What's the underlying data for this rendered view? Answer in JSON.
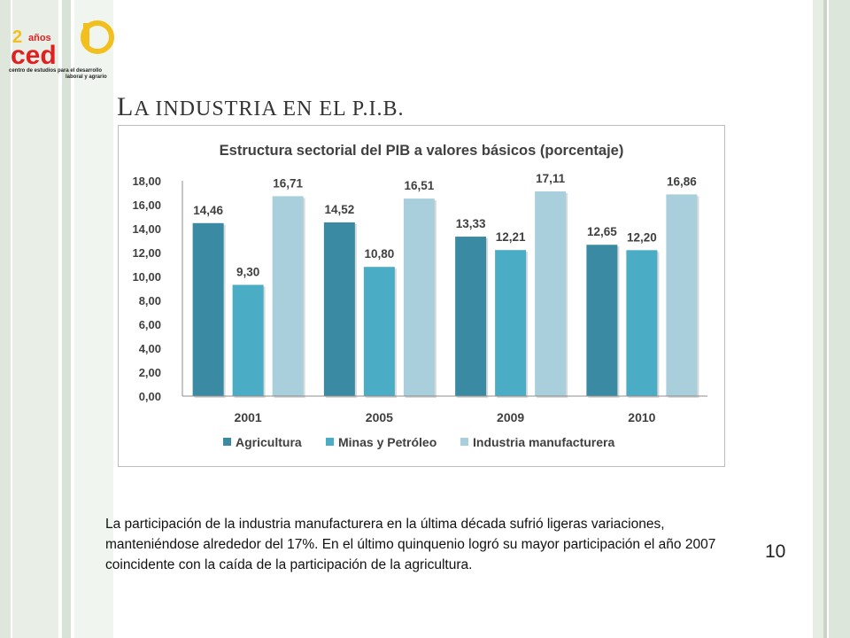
{
  "slide": {
    "title_cap": "L",
    "title_rest": "a industria en el p.i.b.",
    "caption": "La participación de la industria manufacturera en la última década sufrió ligeras variaciones, manteniéndose alrededor del 17%. En el último quinquenio logró su mayor participación el año 2007 coincidente con la caída de la participación de la agricultura.",
    "page_number": "10"
  },
  "logo": {
    "years_text": "años",
    "brand_text": "ced",
    "tagline_line1": "centro de estudios para el desarrollo",
    "tagline_line2": "laboral y agrario",
    "colors": {
      "red": "#e02020",
      "yellow": "#f2c01e"
    }
  },
  "chart_data": {
    "type": "bar",
    "title": "Estructura sectorial del PIB a valores básicos (porcentaje)",
    "categories": [
      "2001",
      "2005",
      "2009",
      "2010"
    ],
    "series": [
      {
        "name": "Agricultura",
        "color": "#3a8aa3",
        "values": [
          14.46,
          14.52,
          13.33,
          12.65
        ],
        "labels": [
          "14,46",
          "14,52",
          "13,33",
          "12,65"
        ]
      },
      {
        "name": "Minas y Petróleo",
        "color": "#4bacc6",
        "values": [
          9.3,
          10.8,
          12.21,
          12.2
        ],
        "labels": [
          "9,30",
          "10,80",
          "12,21",
          "12,20"
        ]
      },
      {
        "name": "Industria manufacturera",
        "color": "#a9cfdd",
        "values": [
          16.71,
          16.51,
          17.11,
          16.86
        ],
        "labels": [
          "16,71",
          "16,51",
          "17,11",
          "16,86"
        ]
      }
    ],
    "y_ticks": [
      "0,00",
      "2,00",
      "4,00",
      "6,00",
      "8,00",
      "10,00",
      "12,00",
      "14,00",
      "16,00",
      "18,00"
    ],
    "ylim": [
      0,
      18
    ],
    "grid": false,
    "legend_position": "bottom"
  },
  "colors": {
    "stripe_light": "#e9efe7",
    "stripe_mid": "#dde6da",
    "stripe_dark": "#cdd8ca"
  }
}
